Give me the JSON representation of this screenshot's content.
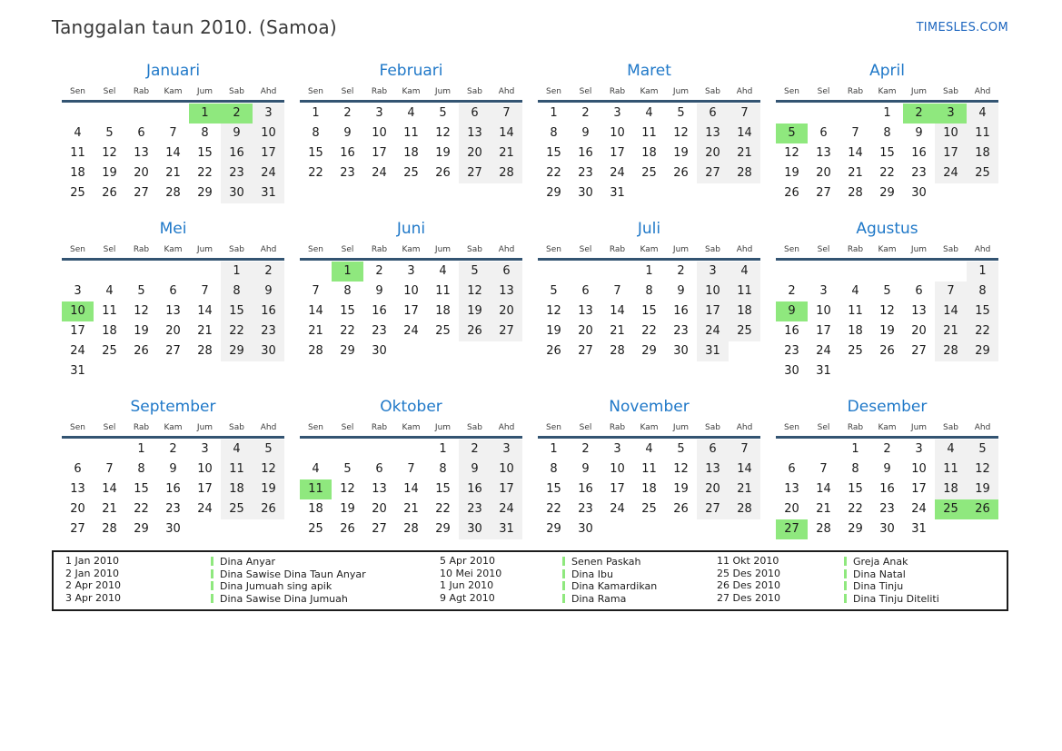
{
  "page": {
    "title": "Tanggalan taun 2010. (Samoa)",
    "site_link": "TIMESLES.COM"
  },
  "calendar": {
    "year": "2010",
    "day_headers": [
      "Sen",
      "Sel",
      "Rab",
      "Kam",
      "Jum",
      "Sab",
      "Ahd"
    ],
    "weekend_columns": [
      5,
      6
    ],
    "months": [
      {
        "name": "Januari",
        "first_day": 4,
        "days": 31,
        "holidays": [
          1,
          2
        ]
      },
      {
        "name": "Februari",
        "first_day": 0,
        "days": 28,
        "holidays": []
      },
      {
        "name": "Maret",
        "first_day": 0,
        "days": 31,
        "holidays": []
      },
      {
        "name": "April",
        "first_day": 3,
        "days": 30,
        "holidays": [
          2,
          3,
          5
        ]
      },
      {
        "name": "Mei",
        "first_day": 5,
        "days": 31,
        "holidays": [
          10
        ]
      },
      {
        "name": "Juni",
        "first_day": 1,
        "days": 30,
        "holidays": [
          1
        ]
      },
      {
        "name": "Juli",
        "first_day": 3,
        "days": 31,
        "holidays": []
      },
      {
        "name": "Agustus",
        "first_day": 6,
        "days": 31,
        "holidays": [
          9
        ]
      },
      {
        "name": "September",
        "first_day": 2,
        "days": 30,
        "holidays": []
      },
      {
        "name": "Oktober",
        "first_day": 4,
        "days": 31,
        "holidays": [
          11
        ]
      },
      {
        "name": "November",
        "first_day": 0,
        "days": 30,
        "holidays": []
      },
      {
        "name": "Desember",
        "first_day": 2,
        "days": 31,
        "holidays": [
          25,
          26,
          27
        ]
      }
    ]
  },
  "legend": {
    "rows_per_column": 4,
    "entries": [
      {
        "date": "1 Jan 2010",
        "name": "Dina Anyar"
      },
      {
        "date": "2 Jan 2010",
        "name": "Dina Sawise Dina Taun Anyar"
      },
      {
        "date": "2 Apr 2010",
        "name": "Dina Jumuah sing apik"
      },
      {
        "date": "3 Apr 2010",
        "name": "Dina Sawise Dina Jumuah"
      },
      {
        "date": "5 Apr 2010",
        "name": "Senen Paskah"
      },
      {
        "date": "10 Mei 2010",
        "name": "Dina Ibu"
      },
      {
        "date": "1 Jun 2010",
        "name": "Dina Kamardikan"
      },
      {
        "date": "9 Agt 2010",
        "name": "Dina Rama"
      },
      {
        "date": "11 Okt 2010",
        "name": "Greja Anak"
      },
      {
        "date": "25 Des 2010",
        "name": "Dina Natal"
      },
      {
        "date": "26 Des 2010",
        "name": "Dina Tinju"
      },
      {
        "date": "27 Des 2010",
        "name": "Dina Tinju Diteliti"
      }
    ]
  },
  "colors": {
    "accent_blue": "#1f78c8",
    "link_blue": "#1d66bf",
    "header_rule": "#335472",
    "holiday_green": "#8fe87e",
    "weekend_gray": "#f1f1f1"
  }
}
